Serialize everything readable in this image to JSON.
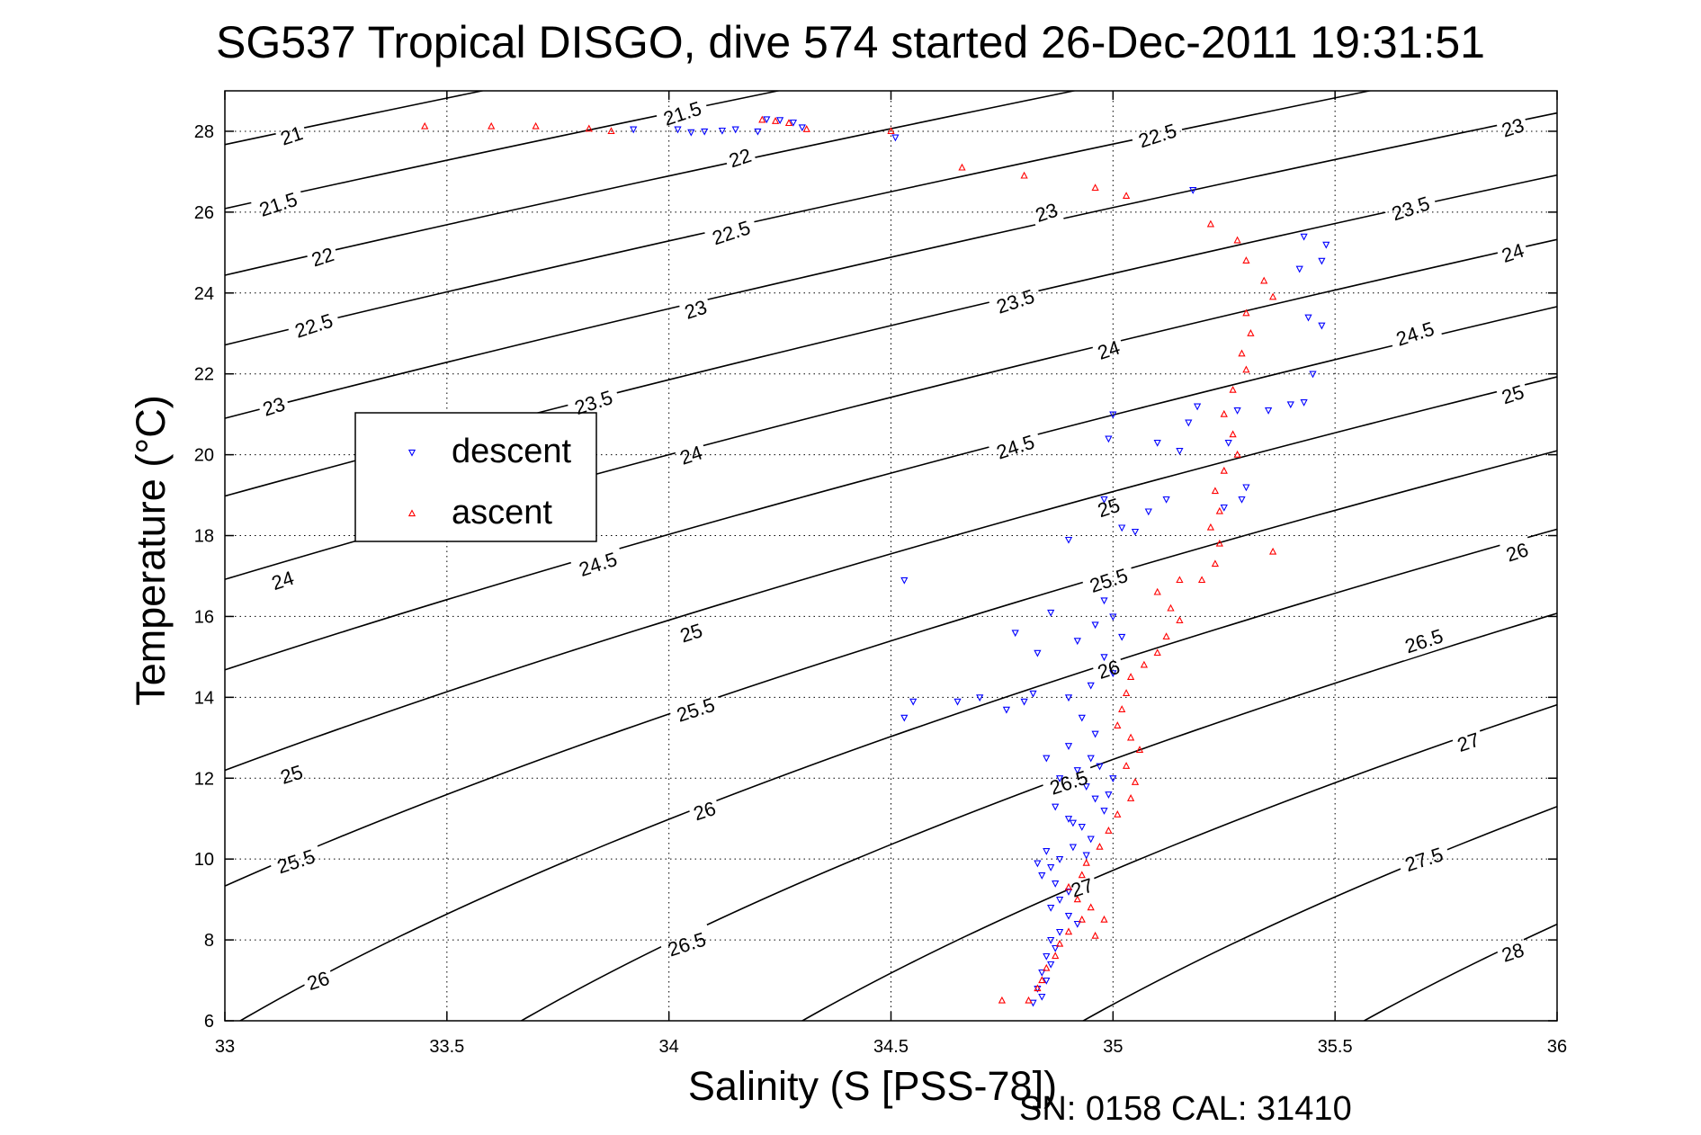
{
  "chart_data": {
    "type": "scatter",
    "title": "SG537 Tropical DISGO, dive 574 started 26-Dec-2011 19:31:51",
    "xlabel": "Salinity (S [PSS-78])",
    "ylabel": "Temperature (°C)",
    "xlim": [
      33,
      36
    ],
    "ylim": [
      6,
      29
    ],
    "xticks": [
      "33",
      "33.5",
      "34",
      "34.5",
      "35",
      "35.5",
      "36"
    ],
    "yticks": [
      "6",
      "8",
      "10",
      "12",
      "14",
      "16",
      "18",
      "20",
      "22",
      "24",
      "26",
      "28"
    ],
    "grid": true,
    "legend_position": "upper-left",
    "density_contours": [
      {
        "sigma": "21",
        "label_at": [
          33.15,
          27.9
        ]
      },
      {
        "sigma": "21.5",
        "label_at": [
          34.03,
          28.45
        ]
      },
      {
        "sigma": "21.5",
        "label_at": [
          33.12,
          26.2
        ]
      },
      {
        "sigma": "22",
        "label_at": [
          34.16,
          27.35
        ]
      },
      {
        "sigma": "22",
        "label_at": [
          33.22,
          24.9
        ]
      },
      {
        "sigma": "22.5",
        "label_at": [
          35.1,
          27.9
        ]
      },
      {
        "sigma": "22.5",
        "label_at": [
          34.14,
          25.5
        ]
      },
      {
        "sigma": "22.5",
        "label_at": [
          33.2,
          23.2
        ]
      },
      {
        "sigma": "23",
        "label_at": [
          35.9,
          28.1
        ]
      },
      {
        "sigma": "23",
        "label_at": [
          34.85,
          26.0
        ]
      },
      {
        "sigma": "23",
        "label_at": [
          34.06,
          23.6
        ]
      },
      {
        "sigma": "23",
        "label_at": [
          33.11,
          21.2
        ]
      },
      {
        "sigma": "23.5",
        "label_at": [
          35.67,
          26.1
        ]
      },
      {
        "sigma": "23.5",
        "label_at": [
          34.78,
          23.8
        ]
      },
      {
        "sigma": "23.5",
        "label_at": [
          33.83,
          21.3
        ]
      },
      {
        "sigma": "24",
        "label_at": [
          35.9,
          25.0
        ]
      },
      {
        "sigma": "24",
        "label_at": [
          34.99,
          22.6
        ]
      },
      {
        "sigma": "24",
        "label_at": [
          34.05,
          20.0
        ]
      },
      {
        "sigma": "24",
        "label_at": [
          33.13,
          16.9
        ]
      },
      {
        "sigma": "24.5",
        "label_at": [
          35.68,
          23.0
        ]
      },
      {
        "sigma": "24.5",
        "label_at": [
          34.78,
          20.2
        ]
      },
      {
        "sigma": "24.5",
        "label_at": [
          33.84,
          17.3
        ]
      },
      {
        "sigma": "25",
        "label_at": [
          35.9,
          21.5
        ]
      },
      {
        "sigma": "25",
        "label_at": [
          34.99,
          18.7
        ]
      },
      {
        "sigma": "25",
        "label_at": [
          34.05,
          15.6
        ]
      },
      {
        "sigma": "25",
        "label_at": [
          33.15,
          12.1
        ]
      },
      {
        "sigma": "25.5",
        "label_at": [
          34.99,
          16.9
        ]
      },
      {
        "sigma": "25.5",
        "label_at": [
          34.06,
          13.7
        ]
      },
      {
        "sigma": "25.5",
        "label_at": [
          33.16,
          9.95
        ]
      },
      {
        "sigma": "26",
        "label_at": [
          35.91,
          17.6
        ]
      },
      {
        "sigma": "26",
        "label_at": [
          34.99,
          14.7
        ]
      },
      {
        "sigma": "26",
        "label_at": [
          34.08,
          11.2
        ]
      },
      {
        "sigma": "26",
        "label_at": [
          33.21,
          7.0
        ]
      },
      {
        "sigma": "26.5",
        "label_at": [
          35.7,
          15.4
        ]
      },
      {
        "sigma": "26.5",
        "label_at": [
          34.9,
          11.9
        ]
      },
      {
        "sigma": "26.5",
        "label_at": [
          34.04,
          7.9
        ]
      },
      {
        "sigma": "27",
        "label_at": [
          35.8,
          12.9
        ]
      },
      {
        "sigma": "27",
        "label_at": [
          34.93,
          9.3
        ]
      },
      {
        "sigma": "27.5",
        "label_at": [
          35.7,
          10.0
        ]
      },
      {
        "sigma": "28",
        "label_at": [
          35.9,
          7.7
        ]
      }
    ],
    "series": [
      {
        "name": "descent",
        "color": "#0000ff",
        "marker": "triangle-down",
        "points": [
          [
            34.22,
            28.3
          ],
          [
            34.25,
            28.28
          ],
          [
            34.28,
            28.22
          ],
          [
            34.3,
            28.1
          ],
          [
            34.08,
            28.0
          ],
          [
            34.12,
            28.02
          ],
          [
            34.05,
            27.98
          ],
          [
            34.15,
            28.05
          ],
          [
            34.2,
            28.0
          ],
          [
            34.02,
            28.05
          ],
          [
            33.92,
            28.05
          ],
          [
            34.51,
            27.85
          ],
          [
            35.18,
            26.55
          ],
          [
            35.43,
            25.4
          ],
          [
            35.48,
            25.2
          ],
          [
            35.42,
            24.6
          ],
          [
            35.47,
            24.8
          ],
          [
            35.44,
            23.4
          ],
          [
            35.47,
            23.2
          ],
          [
            35.45,
            22.0
          ],
          [
            35.43,
            21.3
          ],
          [
            35.4,
            21.25
          ],
          [
            35.35,
            21.1
          ],
          [
            35.28,
            21.1
          ],
          [
            35.19,
            21.2
          ],
          [
            35.17,
            20.8
          ],
          [
            35.15,
            20.1
          ],
          [
            35.1,
            20.3
          ],
          [
            35.26,
            20.3
          ],
          [
            35.3,
            19.2
          ],
          [
            35.29,
            18.9
          ],
          [
            35.25,
            18.7
          ],
          [
            35.12,
            18.9
          ],
          [
            35.08,
            18.6
          ],
          [
            35.05,
            18.1
          ],
          [
            34.99,
            20.4
          ],
          [
            35.0,
            21.0
          ],
          [
            34.98,
            18.9
          ],
          [
            35.02,
            18.2
          ],
          [
            34.9,
            17.9
          ],
          [
            34.53,
            16.9
          ],
          [
            34.98,
            16.4
          ],
          [
            35.0,
            16.0
          ],
          [
            35.02,
            15.5
          ],
          [
            34.96,
            15.8
          ],
          [
            34.92,
            15.4
          ],
          [
            34.98,
            15.0
          ],
          [
            35.0,
            14.6
          ],
          [
            34.95,
            14.3
          ],
          [
            34.9,
            14.0
          ],
          [
            34.82,
            14.1
          ],
          [
            34.8,
            13.9
          ],
          [
            34.76,
            13.7
          ],
          [
            34.7,
            14.0
          ],
          [
            34.65,
            13.9
          ],
          [
            34.55,
            13.9
          ],
          [
            34.53,
            13.5
          ],
          [
            34.78,
            15.6
          ],
          [
            34.86,
            16.1
          ],
          [
            34.83,
            15.1
          ],
          [
            34.93,
            13.5
          ],
          [
            34.96,
            13.1
          ],
          [
            34.9,
            12.8
          ],
          [
            34.95,
            12.5
          ],
          [
            34.92,
            12.2
          ],
          [
            34.88,
            12.0
          ],
          [
            34.94,
            11.8
          ],
          [
            34.96,
            11.5
          ],
          [
            34.98,
            11.2
          ],
          [
            34.9,
            11.0
          ],
          [
            34.93,
            10.8
          ],
          [
            34.95,
            10.5
          ],
          [
            34.91,
            10.3
          ],
          [
            34.88,
            10.0
          ],
          [
            34.86,
            9.8
          ],
          [
            34.84,
            9.6
          ],
          [
            34.87,
            9.4
          ],
          [
            34.9,
            9.2
          ],
          [
            34.88,
            9.0
          ],
          [
            34.86,
            8.8
          ],
          [
            34.9,
            8.6
          ],
          [
            34.92,
            8.4
          ],
          [
            34.88,
            8.2
          ],
          [
            34.86,
            8.0
          ],
          [
            34.87,
            7.8
          ],
          [
            34.85,
            7.6
          ],
          [
            34.86,
            7.4
          ],
          [
            34.84,
            7.2
          ],
          [
            34.85,
            7.0
          ],
          [
            34.83,
            6.8
          ],
          [
            34.84,
            6.6
          ],
          [
            34.82,
            6.45
          ],
          [
            34.97,
            12.3
          ],
          [
            35.0,
            12.0
          ],
          [
            34.99,
            11.6
          ],
          [
            34.85,
            12.5
          ],
          [
            34.87,
            11.3
          ],
          [
            34.91,
            10.9
          ],
          [
            34.94,
            10.1
          ],
          [
            34.85,
            10.2
          ],
          [
            34.83,
            9.9
          ]
        ]
      },
      {
        "name": "ascent",
        "color": "#ff0000",
        "marker": "triangle-up",
        "points": [
          [
            33.45,
            28.12
          ],
          [
            33.6,
            28.12
          ],
          [
            33.7,
            28.12
          ],
          [
            33.82,
            28.06
          ],
          [
            33.87,
            28.0
          ],
          [
            34.21,
            28.28
          ],
          [
            34.24,
            28.25
          ],
          [
            34.27,
            28.2
          ],
          [
            34.31,
            28.05
          ],
          [
            34.5,
            28.0
          ],
          [
            34.66,
            27.1
          ],
          [
            34.8,
            26.9
          ],
          [
            34.96,
            26.6
          ],
          [
            35.03,
            26.4
          ],
          [
            35.22,
            25.7
          ],
          [
            35.28,
            25.3
          ],
          [
            35.3,
            24.8
          ],
          [
            35.34,
            24.3
          ],
          [
            35.36,
            23.9
          ],
          [
            35.3,
            23.5
          ],
          [
            35.31,
            23.0
          ],
          [
            35.29,
            22.5
          ],
          [
            35.3,
            22.1
          ],
          [
            35.27,
            21.6
          ],
          [
            35.25,
            21.0
          ],
          [
            35.27,
            20.5
          ],
          [
            35.28,
            20.0
          ],
          [
            35.25,
            19.6
          ],
          [
            35.23,
            19.1
          ],
          [
            35.24,
            18.6
          ],
          [
            35.22,
            18.2
          ],
          [
            35.24,
            17.8
          ],
          [
            35.23,
            17.3
          ],
          [
            35.15,
            16.9
          ],
          [
            35.1,
            16.6
          ],
          [
            35.13,
            16.2
          ],
          [
            35.15,
            15.9
          ],
          [
            35.12,
            15.5
          ],
          [
            35.1,
            15.1
          ],
          [
            35.07,
            14.8
          ],
          [
            35.04,
            14.5
          ],
          [
            35.03,
            14.1
          ],
          [
            35.02,
            13.7
          ],
          [
            35.01,
            13.3
          ],
          [
            35.04,
            13.0
          ],
          [
            35.06,
            12.7
          ],
          [
            35.03,
            12.3
          ],
          [
            35.05,
            11.9
          ],
          [
            35.04,
            11.5
          ],
          [
            35.01,
            11.1
          ],
          [
            34.99,
            10.7
          ],
          [
            34.97,
            10.3
          ],
          [
            34.94,
            9.9
          ],
          [
            34.93,
            9.6
          ],
          [
            34.9,
            9.3
          ],
          [
            34.92,
            9.0
          ],
          [
            34.95,
            8.8
          ],
          [
            34.93,
            8.5
          ],
          [
            34.9,
            8.2
          ],
          [
            34.88,
            7.9
          ],
          [
            34.87,
            7.6
          ],
          [
            34.85,
            7.3
          ],
          [
            34.84,
            7.0
          ],
          [
            34.83,
            6.8
          ],
          [
            34.81,
            6.5
          ],
          [
            34.75,
            6.5
          ],
          [
            35.36,
            17.6
          ],
          [
            35.2,
            16.9
          ],
          [
            34.98,
            8.5
          ],
          [
            34.96,
            8.1
          ]
        ]
      }
    ]
  },
  "footnote": "SN: 0158  CAL: 31410"
}
